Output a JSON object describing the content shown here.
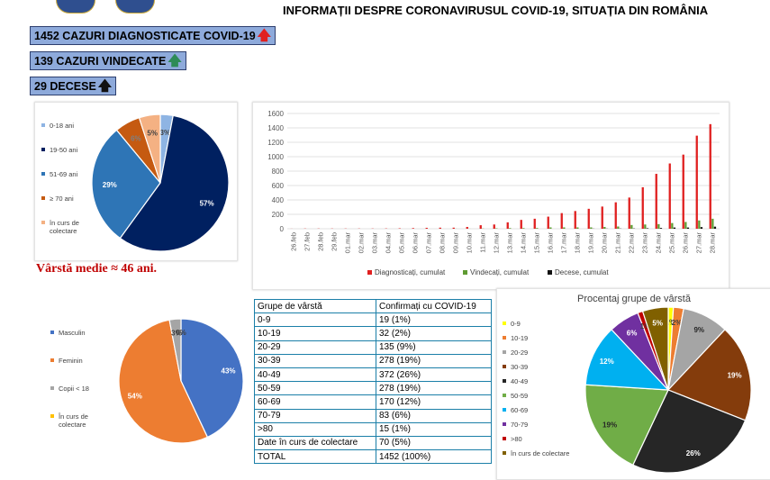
{
  "header": {
    "title": "INFORMAȚII DESPRE CORONAVIRUSUL COVID-19, SITUAȚIA DIN ROMÂNIA"
  },
  "stats": {
    "diagnosed": "1452 CAZURI DIAGNOSTICATE COVID-19",
    "recovered": "139 CAZURI VINDECATE",
    "deaths": "29 DECESE"
  },
  "age_note": "Vârstă medie ≈ 46 ani.",
  "colors": {
    "red": "#e02020",
    "green": "#5f9b32",
    "black": "#111111",
    "stat_box": "#8eaadb"
  },
  "chart_data": [
    {
      "type": "pie",
      "labels": [
        "0-18 ani",
        "19-50 ani",
        "51-69 ani",
        "≥ 70 ani",
        "în curs de colectare"
      ],
      "values": [
        3,
        57,
        29,
        6,
        5
      ],
      "data_labels": [
        "3%",
        "57%",
        "29%",
        "6%",
        "5%"
      ],
      "colors": [
        "#8eb4e3",
        "#002060",
        "#2e75b6",
        "#c55a11",
        "#f4b183"
      ],
      "legend": "left"
    },
    {
      "type": "bar",
      "categories": [
        "26.feb",
        "27.feb",
        "28.feb",
        "29.feb",
        "01.mar",
        "02.mar",
        "03.mar",
        "04.mar",
        "05.mar",
        "06.mar",
        "07.mar",
        "08.mar",
        "09.mar",
        "10.mar",
        "11.mar",
        "12.mar",
        "13.mar",
        "14.mar",
        "15.mar",
        "16.mar",
        "17.mar",
        "18.mar",
        "19.mar",
        "20.mar",
        "21.mar",
        "22.mar",
        "23.mar",
        "24.mar",
        "25.mar",
        "26.mar",
        "27.mar",
        "28.mar"
      ],
      "series": [
        {
          "name": "Diagnosticați, cumulat",
          "color": "#e02020",
          "values": [
            1,
            3,
            3,
            3,
            3,
            3,
            3,
            4,
            6,
            9,
            13,
            15,
            15,
            25,
            49,
            59,
            89,
            123,
            139,
            168,
            217,
            246,
            277,
            308,
            367,
            433,
            576,
            762,
            906,
            1029,
            1292,
            1452
          ]
        },
        {
          "name": "Vindecați, cumulat",
          "color": "#5f9b32",
          "values": [
            0,
            0,
            0,
            0,
            0,
            0,
            0,
            0,
            0,
            0,
            0,
            0,
            1,
            1,
            3,
            6,
            9,
            9,
            10,
            19,
            19,
            19,
            19,
            25,
            31,
            52,
            59,
            64,
            79,
            94,
            115,
            139
          ]
        },
        {
          "name": "Decese, cumulat",
          "color": "#111111",
          "values": [
            0,
            0,
            0,
            0,
            0,
            0,
            0,
            0,
            0,
            0,
            0,
            0,
            0,
            0,
            0,
            0,
            0,
            0,
            0,
            0,
            0,
            0,
            2,
            2,
            3,
            4,
            7,
            11,
            17,
            17,
            23,
            29
          ]
        }
      ],
      "yticks": [
        0,
        200,
        400,
        600,
        800,
        1000,
        1200,
        1400,
        1600
      ],
      "ylim": [
        0,
        1600
      ],
      "grid": true,
      "legend": "bottom"
    },
    {
      "type": "pie",
      "labels": [
        "Masculin",
        "Feminin",
        "Copii < 18",
        "În curs de colectare"
      ],
      "values": [
        43,
        54,
        3,
        0
      ],
      "data_labels": [
        "43%",
        "54%",
        "3%",
        "0%"
      ],
      "colors": [
        "#4472c4",
        "#ed7d31",
        "#a5a5a5",
        "#ffc000"
      ],
      "legend": "left"
    },
    {
      "type": "table",
      "columns": [
        "Grupe de vârstă",
        "Confirmați cu COVID-19"
      ],
      "rows": [
        [
          "0-9",
          "19 (1%)"
        ],
        [
          "10-19",
          "32 (2%)"
        ],
        [
          "20-29",
          "135 (9%)"
        ],
        [
          "30-39",
          "278 (19%)"
        ],
        [
          "40-49",
          "372 (26%)"
        ],
        [
          "50-59",
          "278 (19%)"
        ],
        [
          "60-69",
          "170 (12%)"
        ],
        [
          "70-79",
          "83 (6%)"
        ],
        [
          ">80",
          "15 (1%)"
        ],
        [
          "Date în curs de colectare",
          "70 (5%)"
        ],
        [
          "TOTAL",
          "1452 (100%)"
        ]
      ]
    },
    {
      "type": "pie",
      "title": "Procentaj grupe de vârstă",
      "labels": [
        "0-9",
        "10-19",
        "20-29",
        "30-39",
        "40-49",
        "50-59",
        "60-69",
        "70-79",
        ">80",
        "în curs de colectare"
      ],
      "values": [
        1,
        2,
        9,
        19,
        26,
        19,
        12,
        6,
        1,
        5
      ],
      "data_labels": [
        "1%",
        "2%",
        "9%",
        "19%",
        "26%",
        "19%",
        "12%",
        "6%",
        "1%",
        "5%"
      ],
      "colors": [
        "#ffff00",
        "#ed7d31",
        "#a5a5a5",
        "#843c0c",
        "#262626",
        "#70ad47",
        "#00b0f0",
        "#7030a0",
        "#c00000",
        "#806000"
      ],
      "legend": "left"
    }
  ]
}
